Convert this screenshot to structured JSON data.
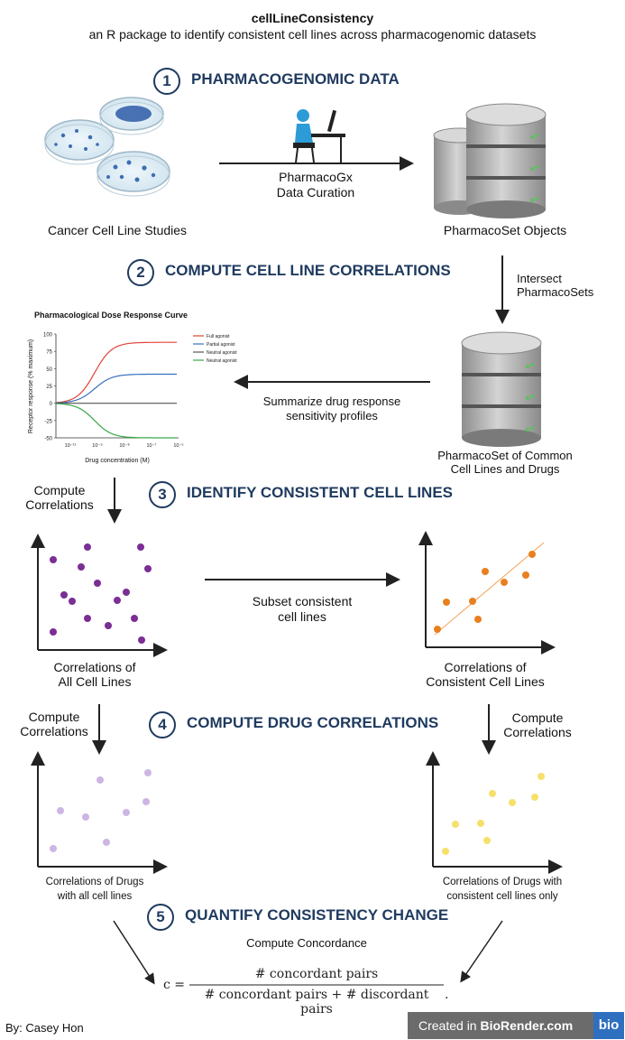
{
  "header": {
    "title": "cellLineConsistency",
    "subtitle": "an R package to identify consistent cell lines across pharmacogenomic datasets"
  },
  "steps": [
    {
      "number": "1",
      "title": "PHARMACOGENOMIC DATA"
    },
    {
      "number": "2",
      "title": "COMPUTE CELL LINE CORRELATIONS"
    },
    {
      "number": "3",
      "title": "IDENTIFY CONSISTENT CELL LINES"
    },
    {
      "number": "4",
      "title": "COMPUTE DRUG CORRELATIONS"
    },
    {
      "number": "5",
      "title": "QUANTIFY CONSISTENCY CHANGE"
    }
  ],
  "labels": {
    "cancer_studies": "Cancer Cell Line Studies",
    "curation_line1": "PharmacoGx",
    "curation_line2": "Data Curation",
    "pharmacoset_objects": "PharmacoSet Objects",
    "intersect_line1": "Intersect",
    "intersect_line2": "PharmacoSets",
    "summarize_line1": "Summarize drug response",
    "summarize_line2": "sensitivity profiles",
    "common_line1": "PharmacoSet of Common",
    "common_line2": "Cell Lines and Drugs",
    "compute_corr_line1": "Compute",
    "compute_corr_line2": "Correlations",
    "subset_line1": "Subset consistent",
    "subset_line2": "cell lines",
    "corr_all_line1": "Correlations of",
    "corr_all_line2": "All Cell Lines",
    "corr_cons_line1": "Correlations of",
    "corr_cons_line2": "Consistent Cell Lines",
    "drugs_all_line1": "Correlations of Drugs",
    "drugs_all_line2": "with all cell lines",
    "drugs_cons_line1": "Correlations of Drugs with",
    "drugs_cons_line2": "consistent cell lines only",
    "concordance": "Compute Concordance",
    "formula_lhs": "c =",
    "formula_num": "# concordant pairs",
    "formula_den": "# concordant pairs + # discordant pairs",
    "formula_end": "."
  },
  "chart_data": {
    "type": "line",
    "title": "Pharmacological Dose Response Curve",
    "xlabel": "Drug concentration (M)",
    "ylabel": "Receptor response (% maximum)",
    "yticks": [
      "100",
      "75",
      "50",
      "25",
      "0",
      "-25",
      "-50"
    ],
    "xticks": [
      "10⁻¹¹",
      "10⁻⁹",
      "10⁻⁸",
      "10⁻⁷",
      "10⁻⁵"
    ],
    "ylim": [
      -50,
      100
    ],
    "series": [
      {
        "name": "Full agonist",
        "color": "#e0433a",
        "max": 88
      },
      {
        "name": "Partial agonist",
        "color": "#3a6fc0",
        "max": 42
      },
      {
        "name": "Neutral agonist",
        "color": "#555555",
        "max": 0
      },
      {
        "name": "Neutral agonist",
        "color": "#3aa84a",
        "max": -50
      }
    ]
  },
  "colors": {
    "step_title": "#1f3a5f",
    "scatter_all": "#7b2e94",
    "scatter_consistent": "#e8801f",
    "scatter_drugs_all": "#cdb6e3",
    "scatter_drugs_consistent": "#f6e06a"
  },
  "footer": {
    "author": "By: Casey Hon",
    "biorender_prefix": "Created in ",
    "biorender_brand": "BioRender.com",
    "biorender_logo": "bio"
  }
}
